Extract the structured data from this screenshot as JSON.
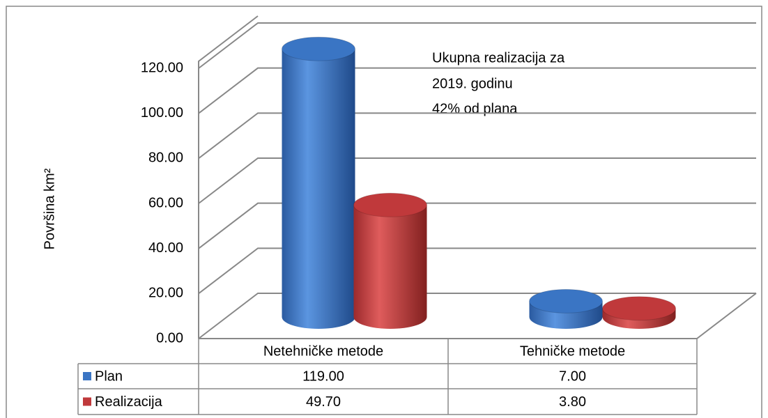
{
  "chart_data": {
    "type": "bar3d",
    "y_label": "Površina  km²",
    "annotation": [
      "Ukupna realizacija za",
      "2019. godinu",
      "42% od plana"
    ],
    "categories": [
      "Netehničke metode",
      "Tehničke metode"
    ],
    "series": [
      {
        "name": "Plan",
        "color": "#3a75c4",
        "values": [
          119,
          7
        ],
        "value_labels": [
          "119.00",
          "7.00"
        ]
      },
      {
        "name": "Realizacija",
        "color": "#c0393b",
        "values": [
          49.7,
          3.8
        ],
        "value_labels": [
          "49.70",
          "3.80"
        ]
      }
    ],
    "ylim": [
      0,
      120
    ],
    "yticks": [
      {
        "value": 0,
        "label": "0.00"
      },
      {
        "value": 20,
        "label": "20.00"
      },
      {
        "value": 40,
        "label": "40.00"
      },
      {
        "value": 60,
        "label": "60.00"
      },
      {
        "value": 80,
        "label": "80.00"
      },
      {
        "value": 100,
        "label": "100.00"
      },
      {
        "value": 120,
        "label": "120.00"
      }
    ],
    "grid": true
  }
}
